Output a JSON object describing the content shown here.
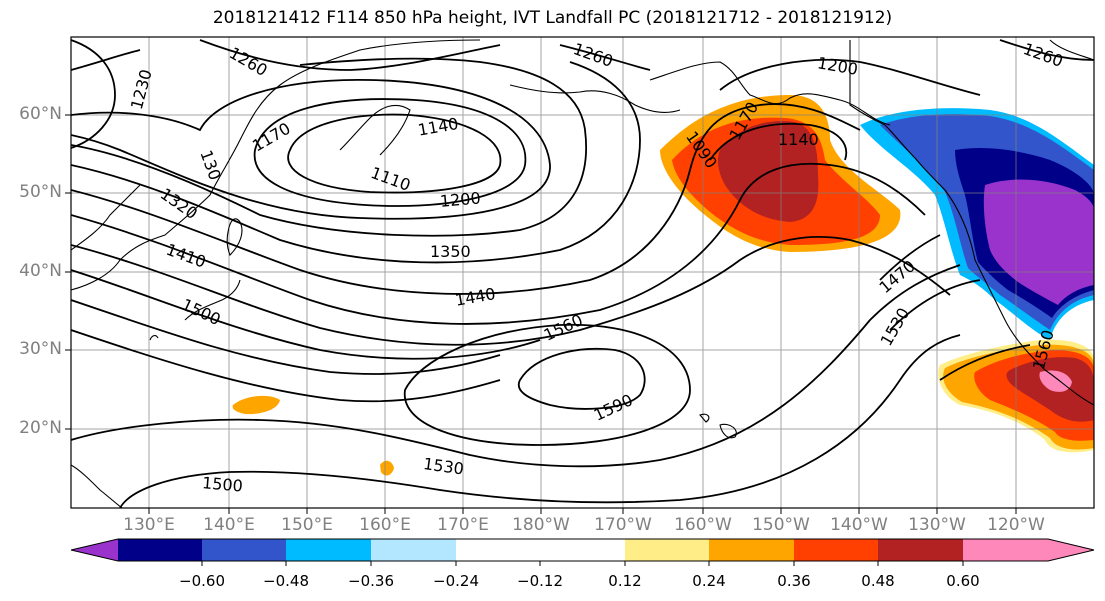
{
  "title": "2018121412 F114 850 hPa height, IVT Landfall PC (2018121712 - 2018121912)",
  "lat_labels": [
    "60°N",
    "50°N",
    "40°N",
    "30°N",
    "20°N"
  ],
  "lon_labels": [
    "130°E",
    "140°E",
    "150°E",
    "160°E",
    "170°E",
    "180°W",
    "170°W",
    "160°W",
    "150°W",
    "140°W",
    "130°W",
    "120°W"
  ],
  "contour_labels": [
    "1230",
    "1260",
    "1260",
    "1260",
    "1200",
    "1170",
    "1140",
    "1110",
    "1200",
    "1170",
    "1140",
    "1090",
    "1350",
    "1440",
    "1560",
    "1590",
    "1470",
    "1530",
    "1410",
    "1320",
    "1500",
    "1530",
    "1500",
    "1560",
    "130"
  ],
  "colorbar": {
    "tick_labels": [
      "−0.60",
      "−0.48",
      "−0.36",
      "−0.24",
      "−0.12",
      "0.12",
      "0.24",
      "0.36",
      "0.48",
      "0.60"
    ],
    "colors": [
      "#9933cc",
      "#000088",
      "#3355cc",
      "#00bbff",
      "#b3e6ff",
      "#ffffff",
      "#ffee88",
      "#ffa500",
      "#ff4000",
      "#b22222",
      "#ff88bb"
    ]
  },
  "colors": {
    "contour": "#000000",
    "grid": "#808080",
    "coast": "#000000"
  }
}
